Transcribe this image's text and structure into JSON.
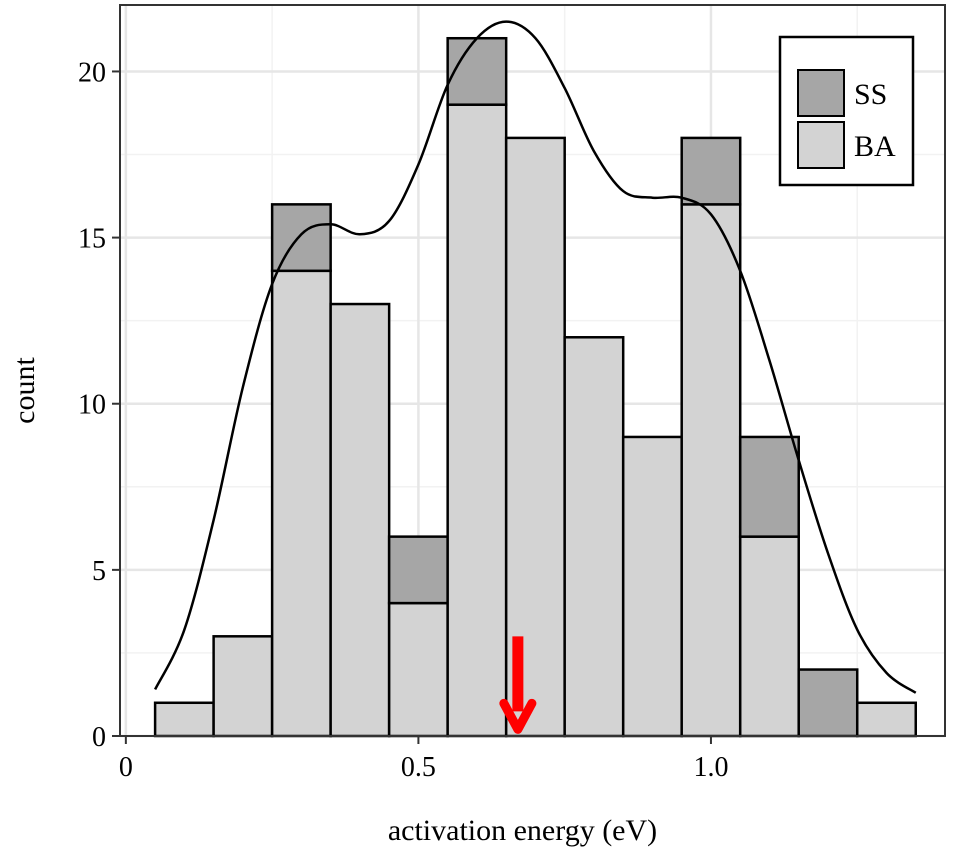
{
  "chart_data": {
    "type": "bar",
    "stacked": true,
    "xlabel": "activation energy (eV)",
    "ylabel": "count",
    "xlim": [
      -0.01,
      1.4
    ],
    "ylim": [
      0,
      22
    ],
    "x_ticks": [
      0,
      0.5,
      1.0
    ],
    "x_tick_labels": [
      "0",
      "0.5",
      "1.0"
    ],
    "y_ticks": [
      0,
      5,
      10,
      15,
      20
    ],
    "y_tick_labels": [
      "0",
      "5",
      "10",
      "15",
      "20"
    ],
    "bin_width": 0.1,
    "bin_centers": [
      0.1,
      0.2,
      0.3,
      0.4,
      0.5,
      0.6,
      0.7,
      0.8,
      0.9,
      1.0,
      1.1,
      1.2,
      1.3
    ],
    "series": [
      {
        "name": "BA",
        "color": "#d3d3d3",
        "values": [
          1,
          3,
          14,
          13,
          4,
          19,
          18,
          12,
          9,
          16,
          6,
          0,
          1
        ]
      },
      {
        "name": "SS",
        "color": "#a6a6a6",
        "values": [
          0,
          0,
          2,
          0,
          2,
          2,
          0,
          0,
          0,
          2,
          3,
          2,
          0
        ]
      }
    ],
    "density_curve": {
      "x": [
        0.05,
        0.1,
        0.15,
        0.2,
        0.25,
        0.3,
        0.35,
        0.4,
        0.45,
        0.5,
        0.55,
        0.6,
        0.65,
        0.7,
        0.75,
        0.8,
        0.85,
        0.9,
        0.95,
        1.0,
        1.05,
        1.1,
        1.15,
        1.2,
        1.25,
        1.3,
        1.35
      ],
      "y": [
        1.4,
        3.2,
        6.5,
        10.5,
        13.6,
        15.1,
        15.4,
        15.1,
        15.5,
        17.2,
        19.6,
        21.0,
        21.5,
        21.0,
        19.5,
        17.6,
        16.4,
        16.2,
        16.2,
        15.7,
        14.0,
        11.3,
        8.3,
        5.5,
        3.2,
        1.9,
        1.3
      ]
    },
    "marker": {
      "type": "arrow-down",
      "x": 0.67,
      "y_from": 3.0,
      "y_to": 0.2,
      "color": "#ff0000"
    },
    "grid": true,
    "legend_position": "top-right"
  }
}
